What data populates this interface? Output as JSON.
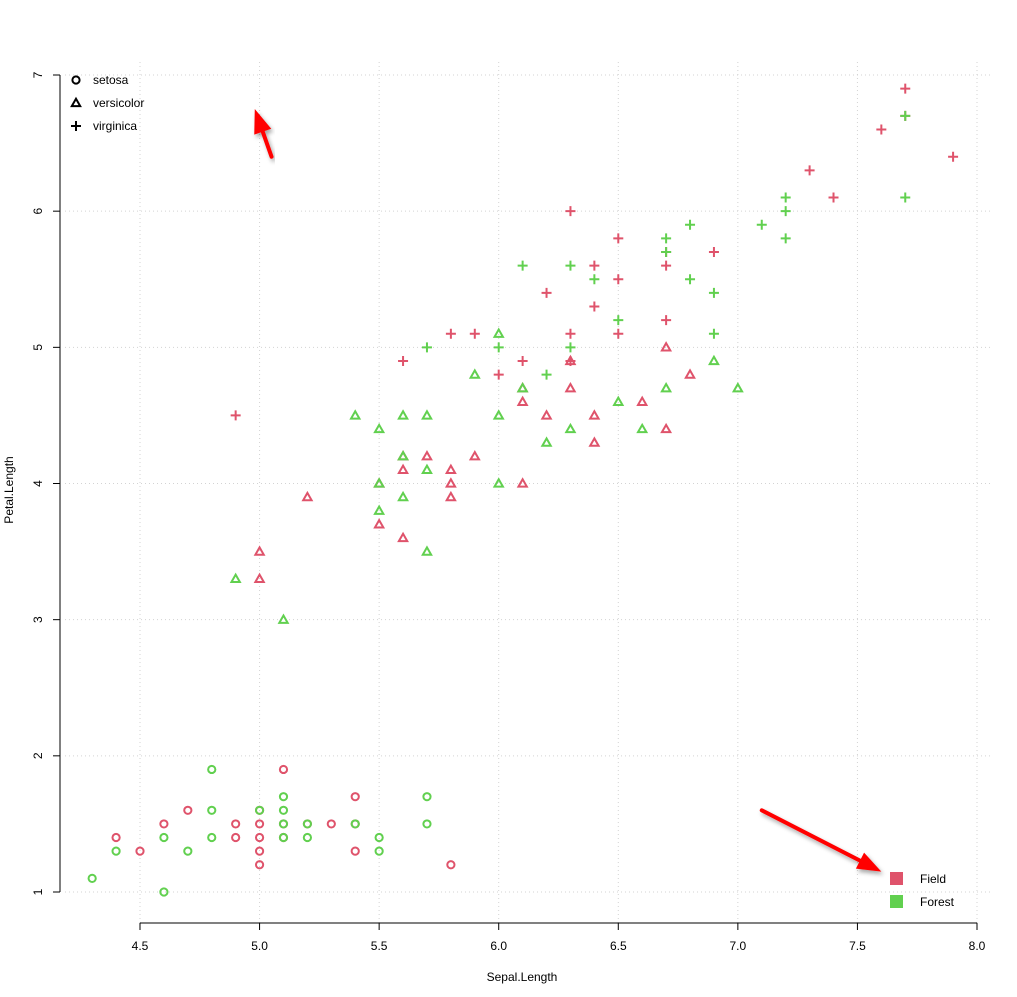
{
  "chart_data": {
    "type": "scatter",
    "title": "",
    "xlabel": "Sepal.Length",
    "ylabel": "Petal.Length",
    "xlim": [
      4.3,
      8.0
    ],
    "ylim": [
      1,
      7
    ],
    "xticks": [
      "4.5",
      "5.0",
      "5.5",
      "6.0",
      "6.5",
      "7.0",
      "7.5",
      "8.0"
    ],
    "yticks": [
      "1",
      "2",
      "3",
      "4",
      "5",
      "6",
      "7"
    ],
    "grid": true,
    "shape_legend": {
      "placement": "top-left",
      "items": [
        {
          "label": "setosa",
          "shape": "circle"
        },
        {
          "label": "versicolor",
          "shape": "triangle"
        },
        {
          "label": "virginica",
          "shape": "plus"
        }
      ]
    },
    "color_legend": {
      "placement": "bottom-right",
      "items": [
        {
          "label": "Field",
          "color": "#DF536B"
        },
        {
          "label": "Forest",
          "color": "#61D04F"
        }
      ]
    },
    "arrows": [
      {
        "from": [
          5.05,
          6.4
        ],
        "to": [
          4.98,
          6.75
        ],
        "color": "#FF0000"
      },
      {
        "from": [
          7.1,
          1.6
        ],
        "to": [
          7.6,
          1.15
        ],
        "color": "#FF0000"
      }
    ],
    "series": [
      {
        "species": "setosa",
        "group": "Field",
        "shape": "circle",
        "color": "#DF536B",
        "points": [
          [
            4.4,
            1.4
          ],
          [
            4.5,
            1.3
          ],
          [
            4.6,
            1.5
          ],
          [
            4.7,
            1.6
          ],
          [
            4.9,
            1.4
          ],
          [
            4.9,
            1.5
          ],
          [
            5.0,
            1.2
          ],
          [
            5.0,
            1.3
          ],
          [
            5.0,
            1.4
          ],
          [
            5.0,
            1.5
          ],
          [
            5.0,
            1.6
          ],
          [
            5.1,
            1.9
          ],
          [
            5.1,
            1.5
          ],
          [
            5.1,
            1.4
          ],
          [
            5.2,
            1.5
          ],
          [
            5.3,
            1.5
          ],
          [
            5.4,
            1.7
          ],
          [
            5.4,
            1.5
          ],
          [
            5.4,
            1.3
          ],
          [
            5.8,
            1.2
          ]
        ]
      },
      {
        "species": "setosa",
        "group": "Forest",
        "shape": "circle",
        "color": "#61D04F",
        "points": [
          [
            4.3,
            1.1
          ],
          [
            4.4,
            1.3
          ],
          [
            4.6,
            1.0
          ],
          [
            4.6,
            1.4
          ],
          [
            4.7,
            1.3
          ],
          [
            4.8,
            1.9
          ],
          [
            4.8,
            1.6
          ],
          [
            4.8,
            1.4
          ],
          [
            5.0,
            1.6
          ],
          [
            5.1,
            1.7
          ],
          [
            5.1,
            1.6
          ],
          [
            5.1,
            1.5
          ],
          [
            5.1,
            1.4
          ],
          [
            5.2,
            1.4
          ],
          [
            5.2,
            1.5
          ],
          [
            5.4,
            1.5
          ],
          [
            5.5,
            1.4
          ],
          [
            5.5,
            1.3
          ],
          [
            5.7,
            1.7
          ],
          [
            5.7,
            1.5
          ]
        ]
      },
      {
        "species": "versicolor",
        "group": "Field",
        "shape": "triangle",
        "color": "#DF536B",
        "points": [
          [
            5.0,
            3.5
          ],
          [
            5.0,
            3.3
          ],
          [
            5.2,
            3.9
          ],
          [
            5.5,
            3.7
          ],
          [
            5.5,
            4.0
          ],
          [
            5.6,
            3.6
          ],
          [
            5.6,
            4.1
          ],
          [
            5.6,
            4.2
          ],
          [
            5.7,
            4.2
          ],
          [
            5.8,
            4.1
          ],
          [
            5.8,
            4.0
          ],
          [
            5.8,
            3.9
          ],
          [
            5.9,
            4.2
          ],
          [
            6.1,
            4.7
          ],
          [
            6.1,
            4.6
          ],
          [
            6.1,
            4.0
          ],
          [
            6.2,
            4.5
          ],
          [
            6.3,
            4.9
          ],
          [
            6.3,
            4.7
          ],
          [
            6.4,
            4.5
          ],
          [
            6.4,
            4.3
          ],
          [
            6.6,
            4.6
          ],
          [
            6.7,
            5.0
          ],
          [
            6.7,
            4.4
          ],
          [
            6.8,
            4.8
          ]
        ]
      },
      {
        "species": "versicolor",
        "group": "Forest",
        "shape": "triangle",
        "color": "#61D04F",
        "points": [
          [
            4.9,
            3.3
          ],
          [
            5.1,
            3.0
          ],
          [
            5.4,
            4.5
          ],
          [
            5.5,
            4.4
          ],
          [
            5.5,
            4.0
          ],
          [
            5.5,
            3.8
          ],
          [
            5.6,
            4.5
          ],
          [
            5.6,
            4.2
          ],
          [
            5.6,
            3.9
          ],
          [
            5.7,
            4.5
          ],
          [
            5.7,
            4.1
          ],
          [
            5.7,
            3.5
          ],
          [
            5.9,
            4.8
          ],
          [
            6.0,
            5.1
          ],
          [
            6.0,
            4.5
          ],
          [
            6.0,
            4.0
          ],
          [
            6.1,
            4.7
          ],
          [
            6.2,
            4.3
          ],
          [
            6.3,
            4.4
          ],
          [
            6.5,
            4.6
          ],
          [
            6.6,
            4.4
          ],
          [
            6.7,
            4.7
          ],
          [
            6.9,
            4.9
          ],
          [
            7.0,
            4.7
          ]
        ]
      },
      {
        "species": "virginica",
        "group": "Field",
        "shape": "plus",
        "color": "#DF536B",
        "points": [
          [
            4.9,
            4.5
          ],
          [
            5.6,
            4.9
          ],
          [
            5.8,
            5.1
          ],
          [
            5.9,
            5.1
          ],
          [
            6.0,
            4.8
          ],
          [
            6.1,
            4.9
          ],
          [
            6.2,
            5.4
          ],
          [
            6.3,
            6.0
          ],
          [
            6.3,
            5.1
          ],
          [
            6.3,
            4.9
          ],
          [
            6.4,
            5.6
          ],
          [
            6.4,
            5.3
          ],
          [
            6.5,
            5.8
          ],
          [
            6.5,
            5.5
          ],
          [
            6.5,
            5.1
          ],
          [
            6.7,
            5.7
          ],
          [
            6.7,
            5.6
          ],
          [
            6.7,
            5.2
          ],
          [
            6.9,
            5.7
          ],
          [
            7.3,
            6.3
          ],
          [
            7.4,
            6.1
          ],
          [
            7.6,
            6.6
          ],
          [
            7.7,
            6.9
          ],
          [
            7.7,
            6.7
          ],
          [
            7.9,
            6.4
          ]
        ]
      },
      {
        "species": "virginica",
        "group": "Forest",
        "shape": "plus",
        "color": "#61D04F",
        "points": [
          [
            5.7,
            5.0
          ],
          [
            6.0,
            5.0
          ],
          [
            6.1,
            5.6
          ],
          [
            6.2,
            4.8
          ],
          [
            6.3,
            5.6
          ],
          [
            6.3,
            5.0
          ],
          [
            6.4,
            5.5
          ],
          [
            6.5,
            5.2
          ],
          [
            6.7,
            5.8
          ],
          [
            6.7,
            5.7
          ],
          [
            6.8,
            5.9
          ],
          [
            6.8,
            5.5
          ],
          [
            6.9,
            5.4
          ],
          [
            6.9,
            5.1
          ],
          [
            7.1,
            5.9
          ],
          [
            7.2,
            6.1
          ],
          [
            7.2,
            6.0
          ],
          [
            7.2,
            5.8
          ],
          [
            7.7,
            6.7
          ],
          [
            7.7,
            6.1
          ]
        ]
      }
    ]
  }
}
